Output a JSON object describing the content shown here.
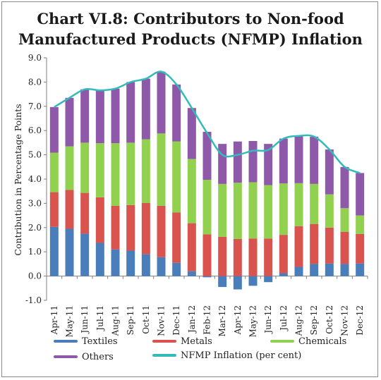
{
  "chart_data": {
    "type": "bar",
    "title_line1": "Chart VI.8: Contributors to Non-food",
    "title_line2": "Manufactured Products (NFMP) Inflation",
    "ylabel": "Contribution in Percentage Points",
    "xlabel": "",
    "ylim": [
      -1.0,
      9.0
    ],
    "yticks": [
      "-1.0",
      "0.0",
      "1.0",
      "2.0",
      "3.0",
      "4.0",
      "5.0",
      "6.0",
      "7.0",
      "8.0",
      "9.0"
    ],
    "categories": [
      "Apr-11",
      "May-11",
      "Jun-11",
      "Jul-11",
      "Aug-11",
      "Sep-11",
      "Oct-11",
      "Nov-11",
      "Dec-11",
      "Jan-12",
      "Feb-12",
      "Mar-12",
      "Apr-12",
      "May-12",
      "Jun-12",
      "Jul-12",
      "Aug-12",
      "Sep-12",
      "Oct-12",
      "Nov-12",
      "Dec-12"
    ],
    "stacked": true,
    "series": [
      {
        "name": "Textiles",
        "color": "#4a7ebb",
        "values": [
          2.03,
          1.95,
          1.75,
          1.37,
          1.1,
          1.05,
          0.9,
          0.78,
          0.55,
          0.2,
          -0.05,
          -0.45,
          -0.55,
          -0.4,
          -0.25,
          0.12,
          0.38,
          0.5,
          0.52,
          0.5,
          0.52
        ]
      },
      {
        "name": "Metals",
        "color": "#d9534f",
        "values": [
          1.43,
          1.6,
          1.68,
          1.88,
          1.8,
          1.88,
          2.12,
          2.12,
          2.07,
          1.98,
          1.72,
          1.62,
          1.53,
          1.55,
          1.55,
          1.58,
          1.68,
          1.65,
          1.48,
          1.32,
          1.22
        ]
      },
      {
        "name": "Chemicals",
        "color": "#92d050",
        "values": [
          1.63,
          1.8,
          2.07,
          2.23,
          2.58,
          2.57,
          2.62,
          2.98,
          2.93,
          2.65,
          2.25,
          2.18,
          2.32,
          2.32,
          2.2,
          2.12,
          1.77,
          1.65,
          1.37,
          0.98,
          0.76
        ]
      },
      {
        "name": "Others",
        "color": "#8e59a8",
        "values": [
          1.88,
          2.0,
          2.2,
          2.18,
          2.25,
          2.5,
          2.5,
          2.55,
          2.35,
          2.1,
          1.98,
          1.65,
          1.7,
          1.7,
          1.7,
          1.85,
          1.95,
          1.95,
          1.85,
          1.7,
          1.75
        ]
      }
    ],
    "line": {
      "name": "NFMP Inflation (per cent)",
      "color": "#33bbbb",
      "values": [
        6.97,
        7.35,
        7.7,
        7.66,
        7.73,
        8.0,
        8.14,
        8.43,
        7.9,
        6.93,
        5.9,
        5.0,
        5.0,
        5.17,
        5.2,
        5.67,
        5.78,
        5.75,
        5.22,
        4.5,
        4.25
      ]
    },
    "legend": [
      "Textiles",
      "Metals",
      "Chemicals",
      "Others",
      "NFMP Inflation (per cent)"
    ],
    "legend_position": "bottom",
    "grid": false
  }
}
